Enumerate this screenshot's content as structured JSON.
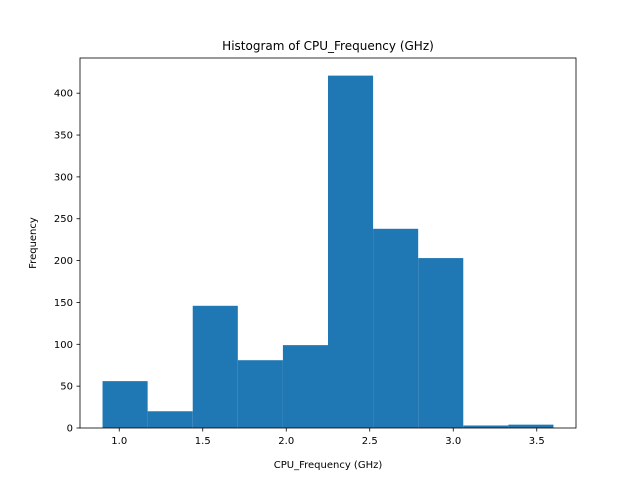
{
  "chart_data": {
    "type": "bar",
    "title": "Histogram of CPU_Frequency (GHz)",
    "xlabel": "CPU_Frequency (GHz)",
    "ylabel": "Frequency",
    "bins": [
      {
        "start": 0.9,
        "end": 1.17,
        "count": 56
      },
      {
        "start": 1.17,
        "end": 1.44,
        "count": 20
      },
      {
        "start": 1.44,
        "end": 1.71,
        "count": 146
      },
      {
        "start": 1.71,
        "end": 1.98,
        "count": 81
      },
      {
        "start": 1.98,
        "end": 2.25,
        "count": 99
      },
      {
        "start": 2.25,
        "end": 2.52,
        "count": 421
      },
      {
        "start": 2.52,
        "end": 2.79,
        "count": 238
      },
      {
        "start": 2.79,
        "end": 3.06,
        "count": 203
      },
      {
        "start": 3.06,
        "end": 3.33,
        "count": 3
      },
      {
        "start": 3.33,
        "end": 3.6,
        "count": 4
      }
    ],
    "xticks": [
      "1.0",
      "1.5",
      "2.0",
      "2.5",
      "3.0",
      "3.5"
    ],
    "yticks": [
      "0",
      "50",
      "100",
      "150",
      "200",
      "250",
      "300",
      "350",
      "400"
    ],
    "xlim": [
      0.765,
      3.735
    ],
    "ylim": [
      0,
      442.05
    ],
    "bar_color": "#1f77b4",
    "grid": false
  }
}
